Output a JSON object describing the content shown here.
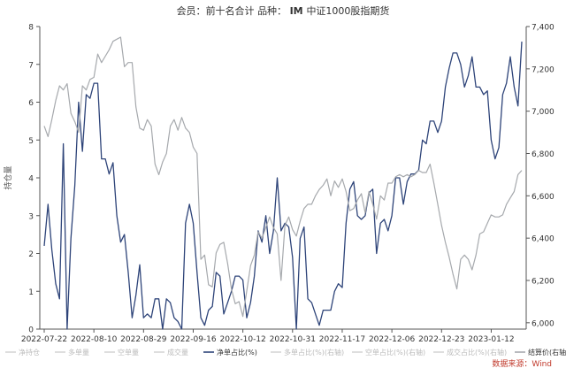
{
  "chart_data": {
    "type": "line",
    "title_parts": {
      "member_label": "会员：",
      "member_value": "前十名合计",
      "variety_label": "品种：",
      "variety_code": "IM",
      "variety_name": "中证1000股指期货"
    },
    "ylabel": "持仓量",
    "ylim": [
      0,
      8
    ],
    "yticks": [
      "0",
      "1",
      "2",
      "3",
      "4",
      "5",
      "6",
      "7",
      "8"
    ],
    "y2lim": [
      5970,
      7400
    ],
    "y2ticks": [
      {
        "v": 6000,
        "label": "6,000"
      },
      {
        "v": 6200,
        "label": "6,200"
      },
      {
        "v": 6400,
        "label": "6,400"
      },
      {
        "v": 6600,
        "label": "6,600"
      },
      {
        "v": 6800,
        "label": "6,800"
      },
      {
        "v": 7000,
        "label": "7,000"
      },
      {
        "v": 7200,
        "label": "7,200"
      },
      {
        "v": 7400,
        "label": "7,400"
      }
    ],
    "x_count": 126,
    "xticks": [
      {
        "i": 0,
        "label": "2022-07-22"
      },
      {
        "i": 13,
        "label": "2022-08-10"
      },
      {
        "i": 26,
        "label": "2022-08-29"
      },
      {
        "i": 39,
        "label": "2022-09-16"
      },
      {
        "i": 52,
        "label": "2022-10-12"
      },
      {
        "i": 65,
        "label": "2022-10-31"
      },
      {
        "i": 78,
        "label": "2022-11-17"
      },
      {
        "i": 91,
        "label": "2022-12-06"
      },
      {
        "i": 104,
        "label": "2022-12-23"
      },
      {
        "i": 117,
        "label": "2023-01-12"
      }
    ],
    "grid": false,
    "legend_placement": "bottom",
    "legend": [
      {
        "label": "净持仓",
        "color": "#c8c8c8",
        "active": false
      },
      {
        "label": "多单量",
        "color": "#c8c8c8",
        "active": false
      },
      {
        "label": "空单量",
        "color": "#c8c8c8",
        "active": false
      },
      {
        "label": "成交量",
        "color": "#c8c8c8",
        "active": false
      },
      {
        "label": "净单占比(%)",
        "color": "#2e4479",
        "active": true
      },
      {
        "label": "多单占比(%)(右轴)",
        "color": "#c8c8c8",
        "active": false
      },
      {
        "label": "空单占比(%)(右轴)",
        "color": "#c8c8c8",
        "active": false
      },
      {
        "label": "成交占比(%)(右轴)",
        "color": "#c8c8c8",
        "active": false
      },
      {
        "label": "结算价(右轴)",
        "color": "#a6a9ad",
        "active": true
      }
    ],
    "source": "数据来源：Wind",
    "series": [
      {
        "name": "净单占比(%)",
        "axis": "left",
        "color": "#2e4479",
        "values": [
          2.2,
          3.3,
          2.1,
          1.2,
          0.8,
          4.9,
          0.0,
          2.4,
          3.8,
          6.0,
          4.7,
          6.2,
          6.1,
          6.5,
          6.5,
          4.5,
          4.5,
          4.1,
          4.4,
          3.0,
          2.3,
          2.5,
          1.5,
          0.3,
          0.9,
          1.7,
          0.3,
          0.4,
          0.3,
          0.8,
          0.8,
          0.0,
          0.8,
          0.7,
          0.3,
          0.2,
          0.0,
          2.8,
          3.3,
          2.8,
          1.5,
          0.3,
          0.1,
          0.5,
          0.6,
          1.5,
          1.4,
          0.4,
          0.7,
          1.0,
          1.4,
          1.4,
          1.3,
          0.3,
          0.7,
          1.4,
          2.6,
          2.3,
          3.0,
          2.0,
          2.6,
          4.0,
          2.6,
          2.8,
          2.7,
          1.9,
          0.0,
          2.4,
          2.7,
          0.8,
          0.7,
          0.4,
          0.1,
          0.5,
          0.5,
          0.5,
          1.0,
          1.2,
          1.1,
          2.8,
          3.7,
          3.9,
          3.0,
          2.9,
          3.0,
          3.6,
          3.7,
          2.0,
          2.8,
          2.9,
          2.6,
          3.0,
          4.0,
          4.0,
          3.3,
          3.9,
          4.1,
          4.1,
          4.2,
          5.0,
          4.9,
          5.5,
          5.5,
          5.2,
          5.5,
          6.4,
          6.9,
          7.3,
          7.3,
          7.0,
          6.4,
          6.7,
          7.2,
          6.4,
          6.4,
          6.2,
          6.3,
          5.0,
          4.5,
          4.8,
          6.2,
          6.5,
          7.2,
          6.4,
          5.9,
          7.6
        ]
      },
      {
        "name": "结算价(右轴)",
        "axis": "right",
        "color": "#a6a9ad",
        "values": [
          6930,
          6880,
          6960,
          7050,
          7120,
          7100,
          7130,
          6990,
          6950,
          6900,
          7120,
          7100,
          7150,
          7160,
          7270,
          7230,
          7260,
          7290,
          7330,
          7340,
          7350,
          7210,
          7230,
          7230,
          7020,
          6920,
          6910,
          6960,
          6930,
          6750,
          6700,
          6760,
          6800,
          6930,
          6960,
          6910,
          6970,
          6920,
          6900,
          6830,
          6800,
          6300,
          6320,
          6180,
          6170,
          6330,
          6370,
          6380,
          6280,
          6160,
          6090,
          6100,
          6030,
          6150,
          6270,
          6320,
          6430,
          6400,
          6450,
          6500,
          6450,
          6420,
          6200,
          6460,
          6500,
          6440,
          6410,
          6480,
          6540,
          6560,
          6560,
          6600,
          6630,
          6650,
          6680,
          6600,
          6670,
          6640,
          6680,
          6620,
          6530,
          6540,
          6580,
          6610,
          6520,
          6620,
          6560,
          6490,
          6600,
          6580,
          6660,
          6660,
          6690,
          6700,
          6690,
          6700,
          6690,
          6700,
          6720,
          6710,
          6710,
          6750,
          6660,
          6560,
          6460,
          6380,
          6310,
          6230,
          6160,
          6300,
          6320,
          6300,
          6250,
          6320,
          6420,
          6430,
          6470,
          6510,
          6500,
          6500,
          6510,
          6560,
          6590,
          6620,
          6700,
          6720
        ]
      }
    ]
  }
}
